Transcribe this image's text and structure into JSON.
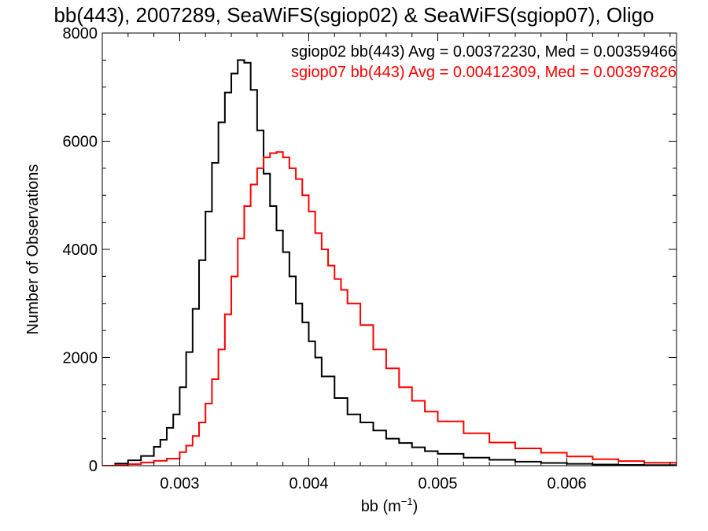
{
  "chart_data": {
    "type": "line",
    "title": "bb(443), 2007289, SeaWiFS(sgiop02) & SeaWiFS(sgiop07), Oligo",
    "xlabel_main": "bb (m",
    "xlabel_exp": "−1",
    "xlabel_close": ")",
    "ylabel": "Number of Observations",
    "xlim": [
      0.0024,
      0.00685
    ],
    "ylim": [
      0,
      8000
    ],
    "xticks": [
      0.003,
      0.004,
      0.005,
      0.006
    ],
    "xtick_labels": [
      "0.003",
      "0.004",
      "0.005",
      "0.006"
    ],
    "yticks": [
      0,
      2000,
      4000,
      6000,
      8000
    ],
    "ytick_labels": [
      "0",
      "2000",
      "4000",
      "6000",
      "8000"
    ],
    "grid": false,
    "legend": "top-right",
    "series": [
      {
        "name": "sgiop02 bb(443) Avg = 0.00372230, Med = 0.00359466",
        "color": "#000000",
        "x": [
          0.0024,
          0.0025,
          0.0026,
          0.0027,
          0.0028,
          0.00285,
          0.0029,
          0.00295,
          0.003,
          0.00305,
          0.0031,
          0.00315,
          0.0032,
          0.00325,
          0.0033,
          0.00335,
          0.0034,
          0.00345,
          0.0035,
          0.00355,
          0.0036,
          0.00365,
          0.0037,
          0.00375,
          0.0038,
          0.00385,
          0.0039,
          0.00395,
          0.004,
          0.00405,
          0.0041,
          0.0042,
          0.0043,
          0.0044,
          0.0045,
          0.0046,
          0.0047,
          0.0048,
          0.0049,
          0.005,
          0.0052,
          0.0054,
          0.0056,
          0.0058,
          0.006,
          0.0062,
          0.0064,
          0.0066,
          0.00685
        ],
        "y": [
          0,
          40,
          100,
          180,
          350,
          480,
          700,
          950,
          1450,
          2100,
          2900,
          3800,
          4700,
          5600,
          6350,
          6900,
          7250,
          7500,
          7450,
          6950,
          6200,
          5400,
          4800,
          4350,
          3950,
          3500,
          3000,
          2650,
          2300,
          2000,
          1650,
          1250,
          950,
          800,
          650,
          500,
          420,
          340,
          270,
          220,
          150,
          110,
          75,
          50,
          35,
          22,
          15,
          10,
          5
        ]
      },
      {
        "name": "sgiop07 bb(443) Avg = 0.00412309, Med = 0.00397826",
        "color": "#ff0000",
        "x": [
          0.0024,
          0.0025,
          0.0026,
          0.0027,
          0.0028,
          0.0029,
          0.003,
          0.00305,
          0.0031,
          0.00315,
          0.0032,
          0.00325,
          0.0033,
          0.00335,
          0.0034,
          0.00345,
          0.0035,
          0.00355,
          0.0036,
          0.00365,
          0.0037,
          0.00375,
          0.0038,
          0.00385,
          0.0039,
          0.00395,
          0.004,
          0.00405,
          0.0041,
          0.00415,
          0.0042,
          0.00425,
          0.0043,
          0.0044,
          0.0045,
          0.0046,
          0.0047,
          0.0048,
          0.0049,
          0.005,
          0.0052,
          0.0054,
          0.0056,
          0.0058,
          0.006,
          0.0062,
          0.0064,
          0.0066,
          0.00685
        ],
        "y": [
          0,
          10,
          30,
          60,
          90,
          130,
          250,
          370,
          550,
          800,
          1150,
          1600,
          2150,
          2800,
          3500,
          4200,
          4800,
          5200,
          5500,
          5700,
          5780,
          5800,
          5700,
          5500,
          5300,
          5000,
          4700,
          4300,
          4000,
          3700,
          3450,
          3250,
          3000,
          2600,
          2150,
          1800,
          1450,
          1200,
          1000,
          820,
          600,
          430,
          320,
          240,
          170,
          120,
          85,
          55,
          30
        ]
      }
    ]
  }
}
